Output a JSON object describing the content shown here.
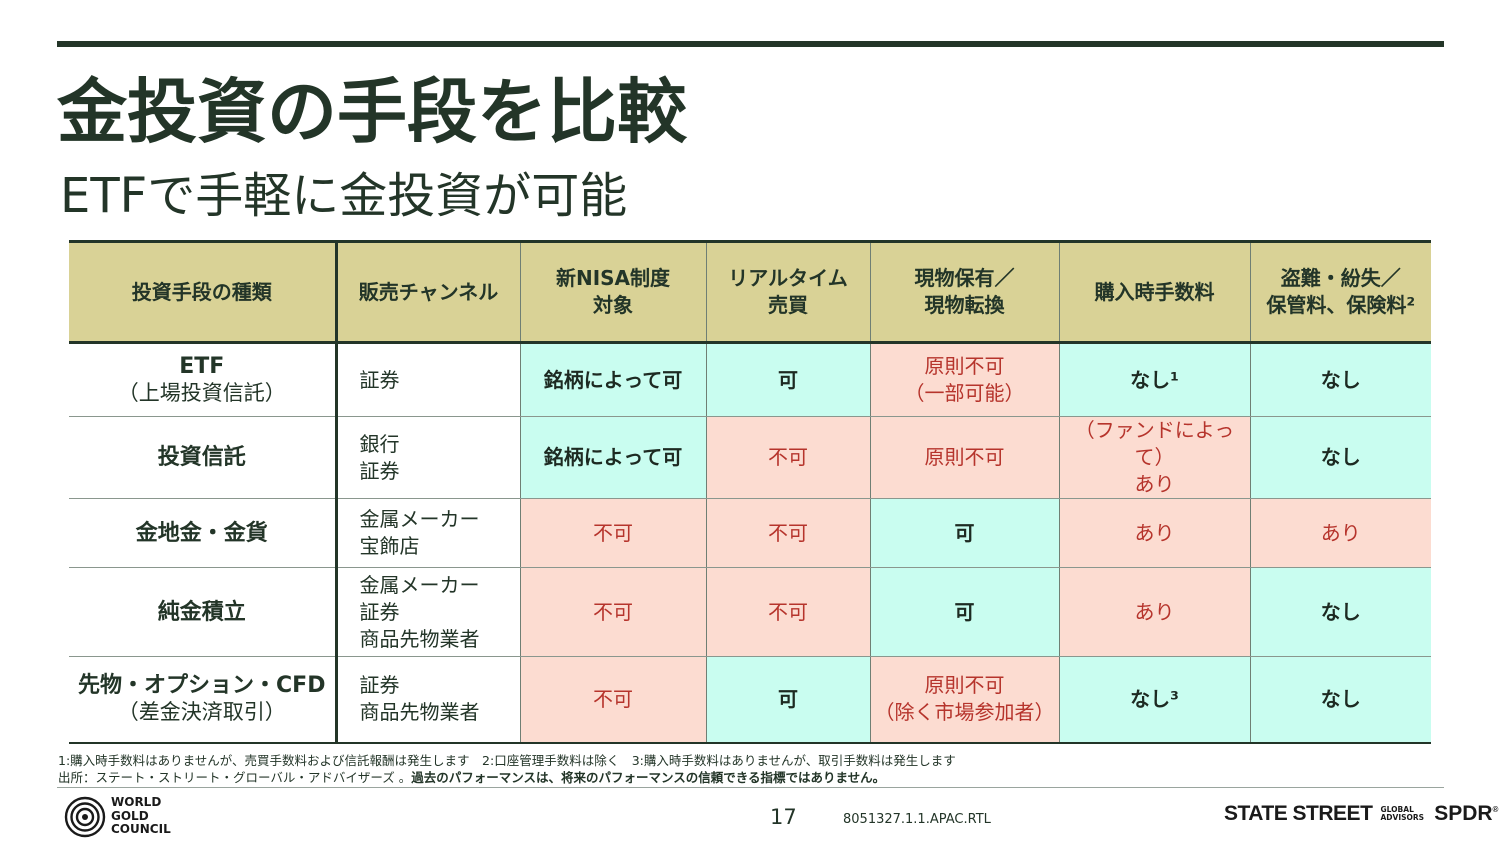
{
  "title": "金投資の手段を比較",
  "subtitle": "ETFで手軽に金投資が可能",
  "colors": {
    "accent": "#233528",
    "header_bg": "#d9d296",
    "yes_bg": "#c9fdf0",
    "no_bg": "#fcdcd1",
    "no_text": "#b6342c"
  },
  "table": {
    "headers": [
      "投資手段の種類",
      "販売チャンネル",
      "新NISA制度\n対象",
      "リアルタイム\n売買",
      "現物保有／\n現物転換",
      "購入時手数料",
      "盗難・紛失／\n保管料、保険料²"
    ],
    "rows": [
      {
        "name": "ETF",
        "sub": "（上場投資信託）",
        "channel": "証券",
        "cells": [
          {
            "text": "銘柄によって可",
            "status": "yes"
          },
          {
            "text": "可",
            "status": "yes"
          },
          {
            "text": "原則不可\n（一部可能）",
            "status": "no"
          },
          {
            "text": "なし¹",
            "status": "yes"
          },
          {
            "text": "なし",
            "status": "yes"
          }
        ]
      },
      {
        "name": "投資信託",
        "sub": "",
        "channel": "銀行\n証券",
        "cells": [
          {
            "text": "銘柄によって可",
            "status": "yes"
          },
          {
            "text": "不可",
            "status": "no"
          },
          {
            "text": "原則不可",
            "status": "no"
          },
          {
            "text": "（ファンドによって）\nあり",
            "status": "no"
          },
          {
            "text": "なし",
            "status": "yes"
          }
        ]
      },
      {
        "name": "金地金・金貨",
        "sub": "",
        "channel": "金属メーカー\n宝飾店",
        "cells": [
          {
            "text": "不可",
            "status": "no"
          },
          {
            "text": "不可",
            "status": "no"
          },
          {
            "text": "可",
            "status": "yes"
          },
          {
            "text": "あり",
            "status": "no"
          },
          {
            "text": "あり",
            "status": "no"
          }
        ]
      },
      {
        "name": "純金積立",
        "sub": "",
        "channel": "金属メーカー\n証券\n商品先物業者",
        "cells": [
          {
            "text": "不可",
            "status": "no"
          },
          {
            "text": "不可",
            "status": "no"
          },
          {
            "text": "可",
            "status": "yes"
          },
          {
            "text": "あり",
            "status": "no"
          },
          {
            "text": "なし",
            "status": "yes"
          }
        ]
      },
      {
        "name": "先物・オプション・CFD",
        "sub": "（差金決済取引）",
        "channel": "証券\n商品先物業者",
        "cells": [
          {
            "text": "不可",
            "status": "no"
          },
          {
            "text": "可",
            "status": "yes"
          },
          {
            "text": "原則不可\n（除く市場参加者）",
            "status": "no"
          },
          {
            "text": "なし³",
            "status": "yes"
          },
          {
            "text": "なし",
            "status": "yes"
          }
        ]
      }
    ]
  },
  "footnotes": {
    "line1": "1:購入時手数料はありませんが、売買手数料および信託報酬は発生します　2:口座管理手数料は除く　3:購入時手数料はありませんが、取引手数料は発生します",
    "source": "出所：ステート・ストリート・グローバル・アドバイザーズ 。",
    "disclaimer": "過去のパフォーマンスは、将来のパフォーマンスの信頼できる指標ではありません。"
  },
  "footer": {
    "wgc_line1": "WORLD",
    "wgc_line2": "GOLD",
    "wgc_line3": "COUNCIL",
    "page_number": "17",
    "doc_code": "8051327.1.1.APAC.RTL",
    "ssga_name": "STATE STREET",
    "ssga_global": "GLOBAL",
    "ssga_advisors": "ADVISORS",
    "spdr": "SPDR",
    "spdr_mark": "®"
  }
}
